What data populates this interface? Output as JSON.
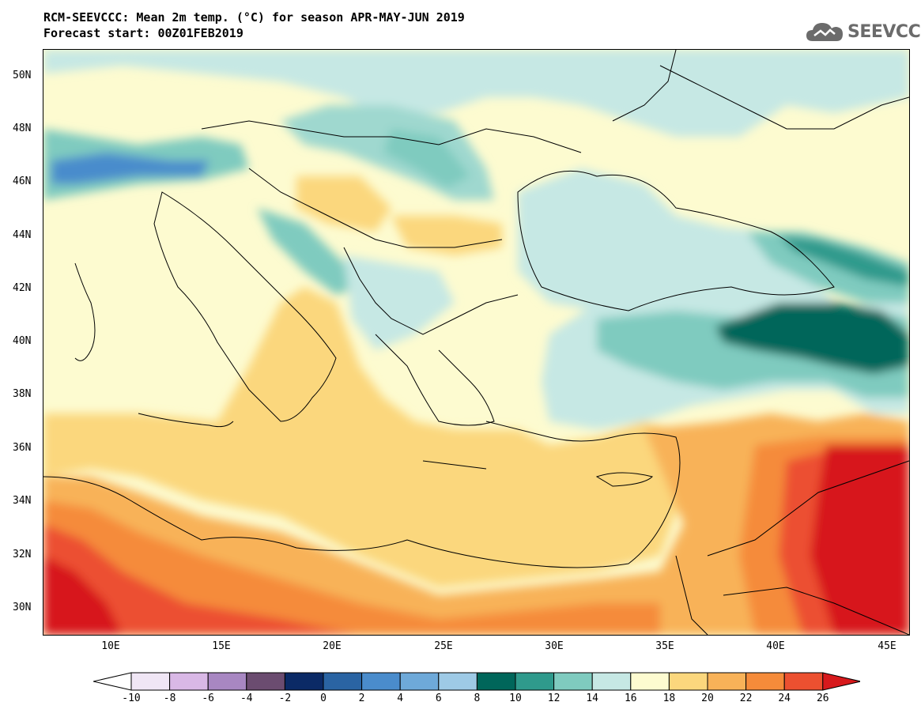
{
  "title": {
    "line1": "RCM-SEEVCCC: Mean 2m temp. (°C) for season APR-MAY-JUN 2019",
    "line2": "Forecast start: 00Z01FEB2019"
  },
  "logo": {
    "text": "SEEVCCC",
    "icon": "cloud-icon"
  },
  "map": {
    "lon_range": [
      7,
      46
    ],
    "lat_range": [
      29,
      51
    ],
    "y_ticks": [
      "50N",
      "48N",
      "46N",
      "44N",
      "42N",
      "40N",
      "38N",
      "36N",
      "34N",
      "32N",
      "30N"
    ],
    "x_ticks": [
      "10E",
      "15E",
      "20E",
      "25E",
      "30E",
      "35E",
      "40E",
      "45E"
    ]
  },
  "colorbar": {
    "levels": [
      "-10",
      "-8",
      "-6",
      "-4",
      "-2",
      "0",
      "2",
      "4",
      "6",
      "8",
      "10",
      "12",
      "14",
      "16",
      "18",
      "20",
      "22",
      "24",
      "26"
    ],
    "colors": [
      "#f0e6f5",
      "#d9b8e6",
      "#a887c2",
      "#6b4c70",
      "#0b2a66",
      "#2a64a3",
      "#4a8ccc",
      "#6ea9d9",
      "#9ecae6",
      "#00665a",
      "#2f9a8c",
      "#7fcbbf",
      "#c6e8e4",
      "#fdfbd0",
      "#fbd77d",
      "#f8b258",
      "#f58b3a",
      "#ec5030"
    ],
    "under_color": "#ffffff",
    "over_color": "#d7191c"
  }
}
